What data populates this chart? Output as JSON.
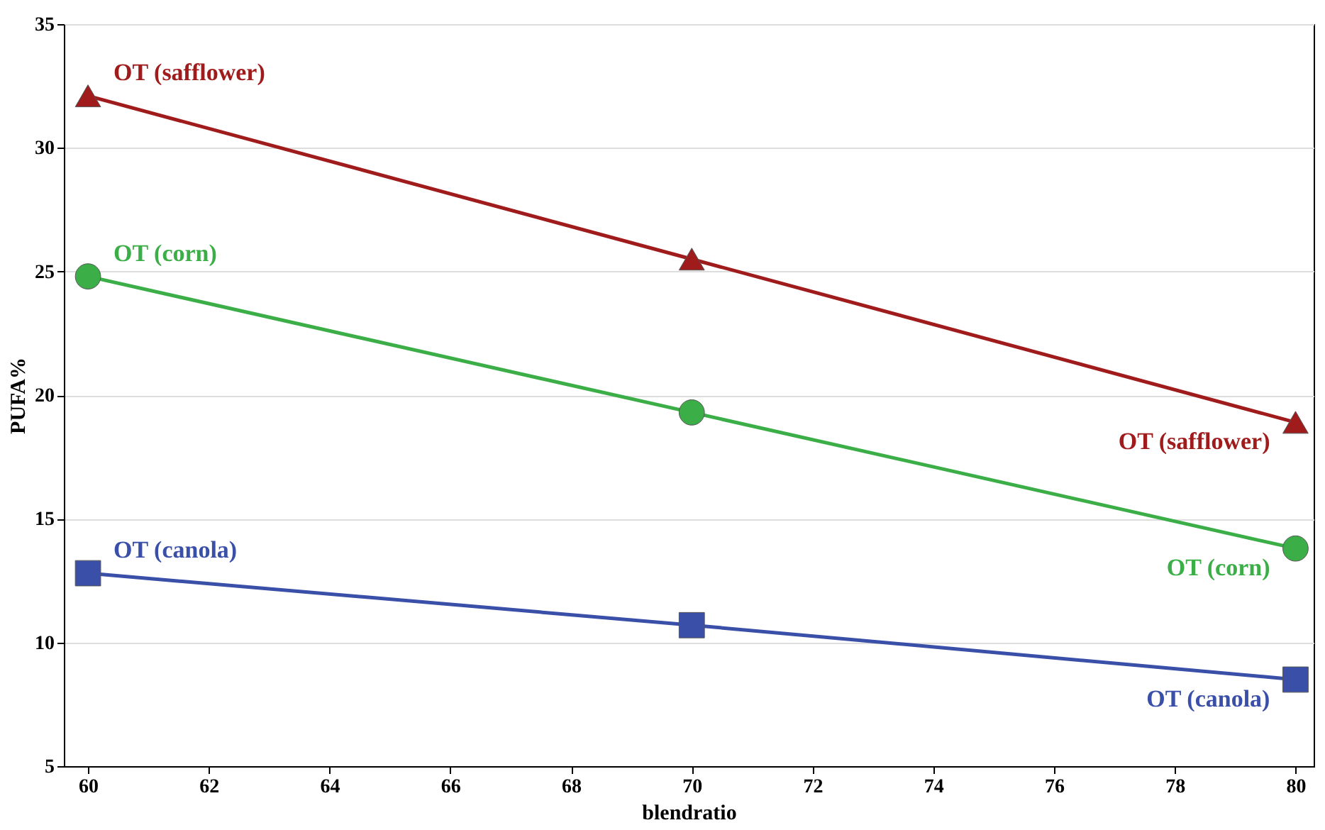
{
  "chart_data": {
    "type": "line",
    "xlabel": "blendratio",
    "ylabel": "PUFA%",
    "x": [
      60,
      70,
      80
    ],
    "series": [
      {
        "name": "OT (safflower)",
        "color": "#a01c1c",
        "marker": "triangle",
        "values": [
          32.1,
          25.5,
          18.9
        ]
      },
      {
        "name": "OT (corn)",
        "color": "#3cae48",
        "marker": "circle",
        "values": [
          24.8,
          19.3,
          13.8
        ]
      },
      {
        "name": "OT (canola)",
        "color": "#3a4fa8",
        "marker": "square",
        "values": [
          12.8,
          10.7,
          8.5
        ]
      }
    ],
    "xlim": [
      59.6,
      80.3
    ],
    "xticks": [
      60,
      62,
      64,
      66,
      68,
      70,
      72,
      74,
      76,
      78,
      80
    ],
    "ylim": [
      5,
      35
    ],
    "yticks": [
      5,
      10,
      15,
      20,
      25,
      30,
      35
    ],
    "grid": "y",
    "line_style": "solid"
  }
}
